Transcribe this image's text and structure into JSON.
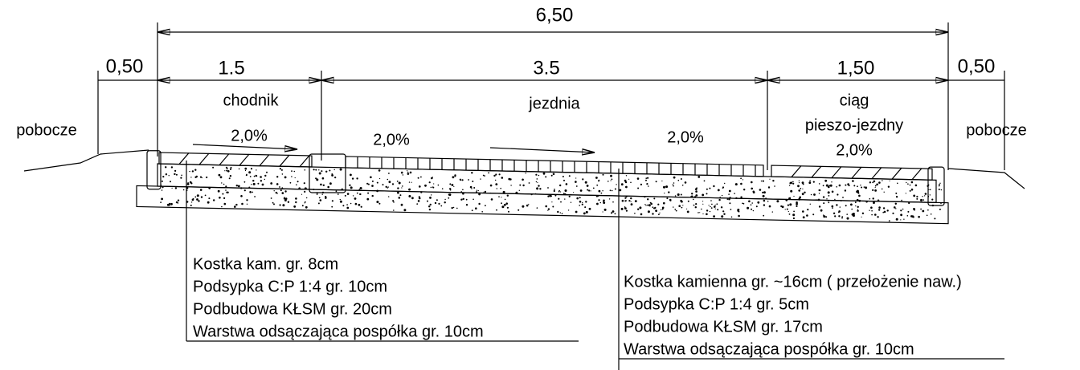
{
  "dimensions": {
    "total": "6,50",
    "left_verge": "0,50",
    "sidewalk": "1.5",
    "roadway": "3.5",
    "shared_path": "1,50",
    "right_verge": "0,50"
  },
  "zones": {
    "sidewalk": "chodnik",
    "roadway": "jezdnia",
    "shared_path_1": "ciąg",
    "shared_path_2": "pieszo-jezdny",
    "verge_left": "pobocze",
    "verge_right": "pobocze"
  },
  "slopes": {
    "sidewalk": "2,0%",
    "roadway_left": "2,0%",
    "roadway_right": "2,0%",
    "shared_path": "2,0%"
  },
  "notes_left": [
    "Kostka kam. gr. 8cm",
    "Podsypka C:P 1:4 gr. 10cm",
    "Podbudowa KŁSM gr. 20cm",
    "Warstwa odsączająca pospółka gr. 10cm"
  ],
  "notes_right": [
    "Kostka kamienna gr. ~16cm ( przełożenie naw.)",
    "Podsypka C:P 1:4 gr. 5cm",
    "Podbudowa KŁSM gr. 17cm",
    "Warstwa odsączająca pospółka gr. 10cm"
  ]
}
